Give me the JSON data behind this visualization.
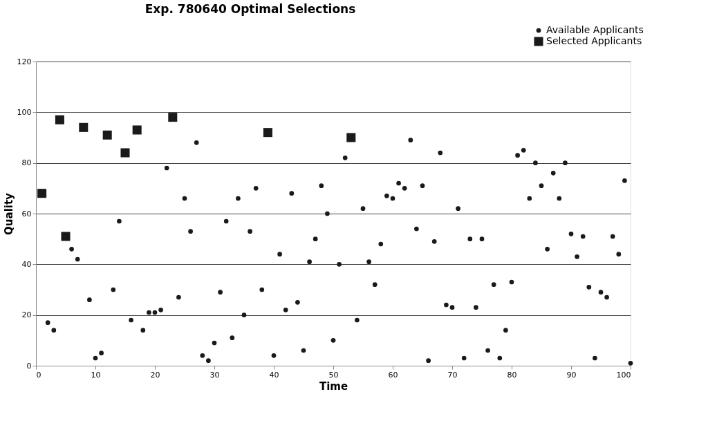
{
  "chart_data": {
    "type": "scatter",
    "title": "Exp. 780640 Optimal Selections",
    "xlabel": "Time",
    "ylabel": "Quality",
    "xlim": [
      0,
      100
    ],
    "xticks": [
      0,
      10,
      20,
      30,
      40,
      50,
      60,
      70,
      80,
      90,
      100
    ],
    "ylim": [
      0,
      120
    ],
    "yticks": [
      0,
      20,
      40,
      60,
      80,
      100,
      120
    ],
    "grid": "y",
    "legend": "top right",
    "series": [
      {
        "name": "Available Applicants",
        "color": "#1a1a1a",
        "marker": "circle",
        "x": [
          2,
          3,
          6,
          7,
          9,
          10,
          11,
          13,
          14,
          16,
          18,
          19,
          20,
          21,
          22,
          24,
          25,
          26,
          27,
          28,
          29,
          30,
          31,
          32,
          33,
          34,
          35,
          36,
          37,
          38,
          40,
          41,
          42,
          43,
          44,
          45,
          46,
          47,
          48,
          49,
          50,
          51,
          52,
          54,
          55,
          56,
          57,
          58,
          59,
          60,
          61,
          62,
          63,
          64,
          65,
          66,
          67,
          68,
          69,
          70,
          71,
          72,
          73,
          74,
          75,
          76,
          77,
          78,
          79,
          80,
          81,
          82,
          83,
          84,
          85,
          86,
          87,
          88,
          89,
          90,
          91,
          92,
          93,
          94,
          95,
          96,
          97,
          98,
          99,
          100
        ],
        "values": [
          17,
          14,
          46,
          42,
          26,
          3,
          5,
          30,
          57,
          18,
          14,
          21,
          21,
          22,
          78,
          27,
          66,
          53,
          88,
          4,
          2,
          9,
          29,
          57,
          11,
          66,
          20,
          53,
          70,
          30,
          4,
          44,
          22,
          68,
          25,
          6,
          41,
          50,
          71,
          60,
          10,
          40,
          82,
          18,
          62,
          41,
          32,
          48,
          67,
          66,
          72,
          70,
          89,
          54,
          71,
          2,
          49,
          84,
          24,
          23,
          62,
          3,
          50,
          23,
          50,
          6,
          32,
          3,
          14,
          33,
          83,
          85,
          66,
          80,
          71,
          46,
          76,
          66,
          80,
          52,
          43,
          51,
          31,
          3,
          29,
          27,
          51,
          44,
          73,
          1
        ]
      },
      {
        "name": "Selected Applicants",
        "color": "#1a1a1a",
        "marker": "square",
        "x": [
          1,
          4,
          5,
          8,
          12,
          15,
          17,
          23,
          39,
          53
        ],
        "values": [
          68,
          97,
          51,
          94,
          91,
          84,
          93,
          98,
          92,
          90
        ]
      }
    ]
  }
}
